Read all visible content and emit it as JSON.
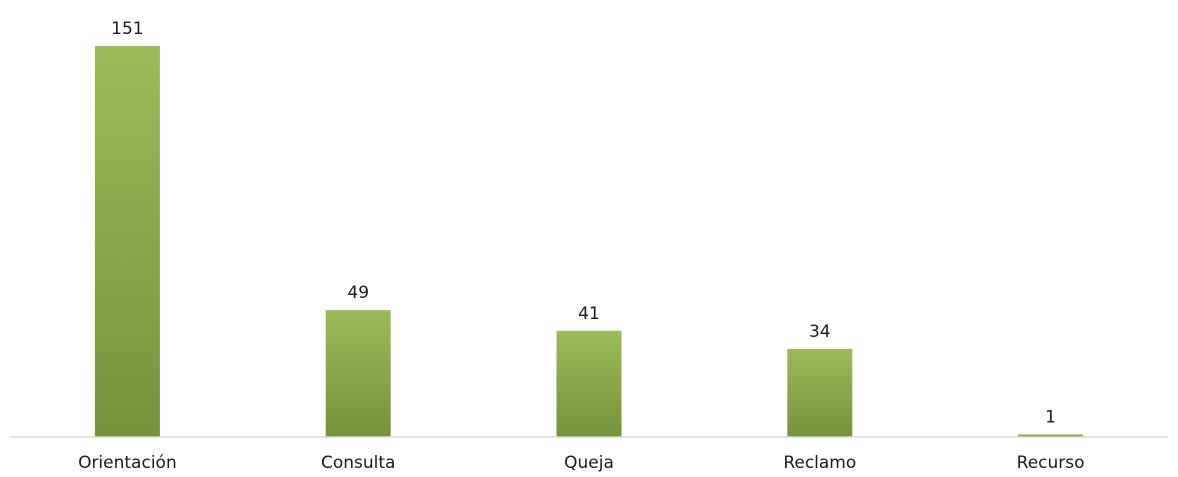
{
  "chart_data": {
    "type": "bar",
    "title": "",
    "xlabel": "",
    "ylabel": "",
    "categories": [
      "Orientación",
      "Consulta",
      "Queja",
      "Reclamo",
      "Recurso"
    ],
    "values": [
      151,
      49,
      41,
      34,
      1
    ],
    "ylim": [
      0,
      151
    ],
    "grid": false,
    "legend": "none",
    "data_labels": [
      "151",
      "49",
      "41",
      "34",
      "1"
    ],
    "colors": {
      "bar_top": "#9bbb59",
      "bar_bottom": "#76923c",
      "axis": "#d9d9d9",
      "text": "#1a1a1a"
    }
  }
}
